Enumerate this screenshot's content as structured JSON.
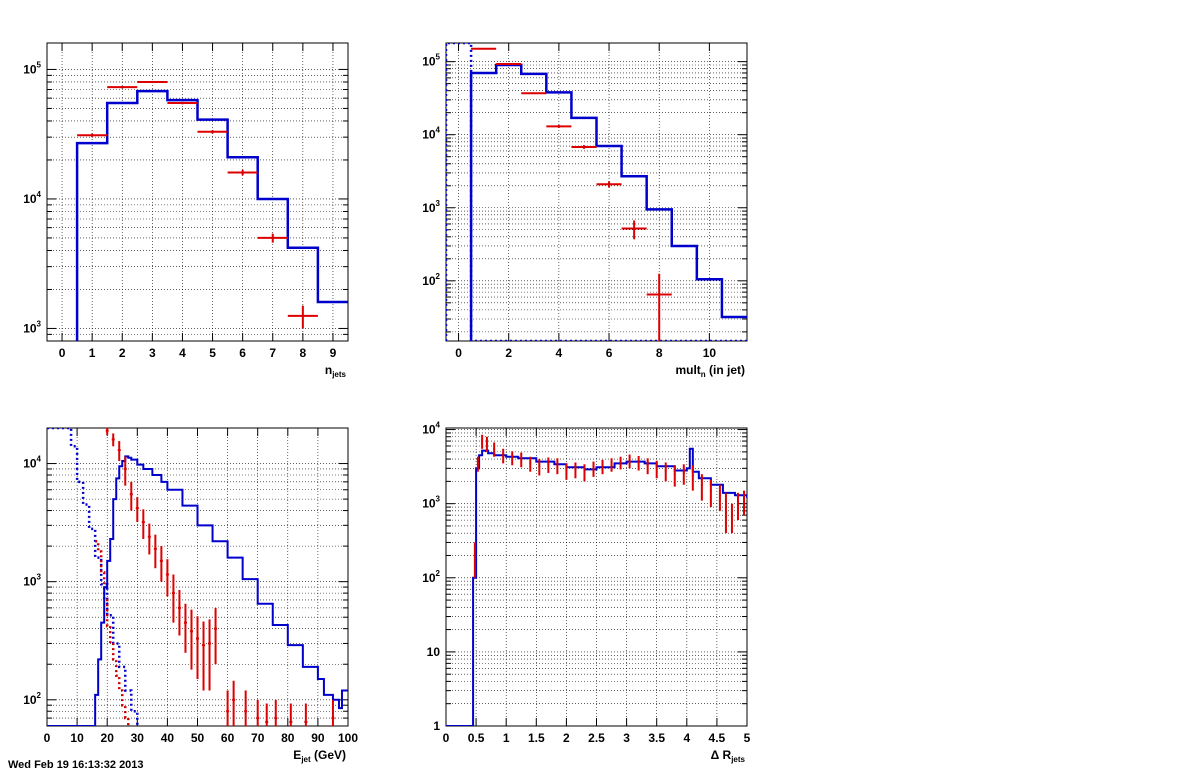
{
  "footer": "Wed Feb 19 16:13:32 2013",
  "chart_data": [
    {
      "id": "njets",
      "type": "line",
      "xlabel_main": "n",
      "xlabel_sub": "jets",
      "xlabel_rest": "",
      "xlim": [
        -0.5,
        9.5
      ],
      "ylim": [
        800,
        160000
      ],
      "log_y": true,
      "grid": true,
      "x_ticks": [
        0,
        1,
        2,
        3,
        4,
        5,
        6,
        7,
        8,
        9
      ],
      "x_tick_labels": [
        "0",
        "1",
        "2",
        "3",
        "4",
        "5",
        "6",
        "7",
        "8",
        "9"
      ],
      "y_ticks": [
        1000,
        10000,
        100000
      ],
      "y_tick_labels": [
        {
          "base": "10",
          "exp": "3"
        },
        {
          "base": "10",
          "exp": "4"
        },
        {
          "base": "10",
          "exp": "5"
        }
      ],
      "series": [
        {
          "style": "step-solid",
          "color": "#0000cc",
          "edges": [
            0.5,
            1.5,
            2.5,
            3.5,
            4.5,
            5.5,
            6.5,
            7.5,
            8.5,
            9.5
          ],
          "values": [
            27000,
            55000,
            68000,
            58000,
            41000,
            21000,
            10000,
            4200,
            1600
          ]
        },
        {
          "style": "errorbar",
          "color": "#dd0000",
          "points": [
            {
              "x": 1,
              "y": 31000,
              "xerr": 0.5,
              "yerr": 1000
            },
            {
              "x": 2,
              "y": 73000,
              "xerr": 0.5,
              "yerr": 1500
            },
            {
              "x": 3,
              "y": 80000,
              "xerr": 0.5,
              "yerr": 1500
            },
            {
              "x": 4,
              "y": 55000,
              "xerr": 0.5,
              "yerr": 1200
            },
            {
              "x": 5,
              "y": 33000,
              "xerr": 0.5,
              "yerr": 1000
            },
            {
              "x": 6,
              "y": 16000,
              "xerr": 0.5,
              "yerr": 800
            },
            {
              "x": 7,
              "y": 5000,
              "xerr": 0.5,
              "yerr": 400
            },
            {
              "x": 8,
              "y": 1250,
              "xerr": 0.5,
              "yerr": 250
            }
          ]
        }
      ]
    },
    {
      "id": "mult",
      "type": "line",
      "xlabel_main": "mult",
      "xlabel_sub": "n",
      "xlabel_rest": " (in jet)",
      "xlim": [
        -0.5,
        11.5
      ],
      "ylim": [
        15,
        180000
      ],
      "log_y": true,
      "grid": true,
      "x_ticks": [
        0,
        2,
        4,
        6,
        8,
        10
      ],
      "x_tick_labels": [
        "0",
        "2",
        "4",
        "6",
        "8",
        "10"
      ],
      "y_ticks": [
        100,
        1000,
        10000,
        100000
      ],
      "y_tick_labels": [
        {
          "base": "10",
          "exp": "2"
        },
        {
          "base": "10",
          "exp": "3"
        },
        {
          "base": "10",
          "exp": "4"
        },
        {
          "base": "10",
          "exp": "5"
        }
      ],
      "series": [
        {
          "style": "step-dotted",
          "color": "#0000cc",
          "edges": [
            -0.5,
            0.5,
            11.5
          ],
          "values": [
            180000,
            15
          ]
        },
        {
          "style": "step-solid",
          "color": "#0000cc",
          "edges": [
            0.5,
            1.5,
            2.5,
            3.5,
            4.5,
            5.5,
            6.5,
            7.5,
            8.5,
            9.5,
            10.5,
            11.5
          ],
          "values": [
            70000,
            90000,
            68000,
            38000,
            17000,
            7000,
            2700,
            950,
            300,
            105,
            32
          ]
        },
        {
          "style": "errorbar",
          "color": "#dd0000",
          "points": [
            {
              "x": 1,
              "y": 150000,
              "xerr": 0.5,
              "yerr": 2000
            },
            {
              "x": 2,
              "y": 93000,
              "xerr": 0.5,
              "yerr": 1500
            },
            {
              "x": 3,
              "y": 37000,
              "xerr": 0.5,
              "yerr": 1000
            },
            {
              "x": 4,
              "y": 13000,
              "xerr": 0.5,
              "yerr": 600
            },
            {
              "x": 5,
              "y": 6800,
              "xerr": 0.5,
              "yerr": 400
            },
            {
              "x": 6,
              "y": 2100,
              "xerr": 0.5,
              "yerr": 200
            },
            {
              "x": 7,
              "y": 520,
              "xerr": 0.5,
              "yerr": 150
            },
            {
              "x": 8,
              "y": 65,
              "xerr": 0.5,
              "yerr": 60
            }
          ]
        }
      ]
    },
    {
      "id": "ejet",
      "type": "line",
      "xlabel_main": "E",
      "xlabel_sub": "jet",
      "xlabel_rest": " (GeV)",
      "xlim": [
        0,
        100
      ],
      "ylim": [
        60,
        20000
      ],
      "log_y": true,
      "grid": true,
      "x_ticks": [
        0,
        10,
        20,
        30,
        40,
        50,
        60,
        70,
        80,
        90,
        100
      ],
      "x_tick_labels": [
        "0",
        "10",
        "20",
        "30",
        "40",
        "50",
        "60",
        "70",
        "80",
        "90",
        "100"
      ],
      "y_ticks": [
        100,
        1000,
        10000
      ],
      "y_tick_labels": [
        {
          "base": "10",
          "exp": "2"
        },
        {
          "base": "10",
          "exp": "3"
        },
        {
          "base": "10",
          "exp": "4"
        }
      ],
      "series": [
        {
          "style": "curve-dotted",
          "color": "#0000cc",
          "x": [
            0,
            6,
            8,
            10,
            12,
            14,
            16,
            18,
            20,
            22,
            24,
            26,
            28,
            30
          ],
          "y": [
            20000,
            20000,
            14000,
            7000,
            4500,
            2800,
            1600,
            950,
            520,
            300,
            190,
            120,
            80,
            60
          ]
        },
        {
          "style": "curve-dotted",
          "color": "#cc0000",
          "x": [
            16,
            17,
            18,
            19,
            20,
            21,
            22,
            23,
            24,
            25,
            26,
            27
          ],
          "y": [
            2200,
            1800,
            1200,
            700,
            420,
            300,
            220,
            160,
            120,
            90,
            70,
            60
          ]
        },
        {
          "style": "curve-solid",
          "color": "#0000cc",
          "x": [
            0,
            15,
            16,
            17,
            18,
            19,
            20,
            21,
            22,
            23,
            24,
            25,
            26,
            27,
            28,
            30,
            32,
            35,
            38,
            40,
            45,
            50,
            55,
            60,
            65,
            70,
            75,
            80,
            85,
            90,
            92,
            95,
            97,
            98,
            100
          ],
          "y": [
            60,
            60,
            110,
            220,
            450,
            900,
            1500,
            2300,
            5000,
            7500,
            9500,
            10500,
            11500,
            11200,
            10800,
            9800,
            9000,
            8000,
            7000,
            6000,
            4400,
            3000,
            2200,
            1600,
            1050,
            650,
            430,
            290,
            190,
            150,
            110,
            100,
            85,
            120,
            120
          ]
        },
        {
          "style": "errorbar",
          "color": "#dd0000",
          "points": [
            {
              "x": 20,
              "y": 19000,
              "xerr": 0.5,
              "yerr": 1500
            },
            {
              "x": 22,
              "y": 16000,
              "xerr": 0.5,
              "yerr": 2000
            },
            {
              "x": 24,
              "y": 13000,
              "xerr": 0.5,
              "yerr": 2500
            },
            {
              "x": 26,
              "y": 9000,
              "xerr": 0.5,
              "yerr": 2500
            },
            {
              "x": 28,
              "y": 5500,
              "xerr": 0.5,
              "yerr": 1500
            },
            {
              "x": 30,
              "y": 4200,
              "xerr": 0.5,
              "yerr": 1000
            },
            {
              "x": 32,
              "y": 3200,
              "xerr": 0.5,
              "yerr": 900
            },
            {
              "x": 34,
              "y": 2400,
              "xerr": 0.5,
              "yerr": 700
            },
            {
              "x": 36,
              "y": 1900,
              "xerr": 0.5,
              "yerr": 600
            },
            {
              "x": 38,
              "y": 1500,
              "xerr": 0.5,
              "yerr": 500
            },
            {
              "x": 40,
              "y": 1150,
              "xerr": 0.5,
              "yerr": 400
            },
            {
              "x": 42,
              "y": 800,
              "xerr": 0.5,
              "yerr": 350
            },
            {
              "x": 44,
              "y": 600,
              "xerr": 0.5,
              "yerr": 250
            },
            {
              "x": 46,
              "y": 450,
              "xerr": 0.5,
              "yerr": 200
            },
            {
              "x": 48,
              "y": 380,
              "xerr": 0.5,
              "yerr": 200
            },
            {
              "x": 50,
              "y": 330,
              "xerr": 0.5,
              "yerr": 180
            },
            {
              "x": 52,
              "y": 290,
              "xerr": 0.5,
              "yerr": 170
            },
            {
              "x": 54,
              "y": 300,
              "xerr": 0.5,
              "yerr": 180
            },
            {
              "x": 56,
              "y": 400,
              "xerr": 0.5,
              "yerr": 200
            },
            {
              "x": 60,
              "y": 80,
              "xerr": 0.5,
              "yerr": 40
            },
            {
              "x": 62,
              "y": 100,
              "xerr": 0.5,
              "yerr": 45
            },
            {
              "x": 66,
              "y": 80,
              "xerr": 0.5,
              "yerr": 40
            },
            {
              "x": 70,
              "y": 70,
              "xerr": 0.5,
              "yerr": 30
            },
            {
              "x": 73,
              "y": 65,
              "xerr": 0.5,
              "yerr": 28
            },
            {
              "x": 76,
              "y": 70,
              "xerr": 0.5,
              "yerr": 30
            },
            {
              "x": 81,
              "y": 65,
              "xerr": 0.5,
              "yerr": 28
            },
            {
              "x": 86,
              "y": 65,
              "xerr": 0.5,
              "yerr": 28
            },
            {
              "x": 95,
              "y": 70,
              "xerr": 0.5,
              "yerr": 30
            }
          ]
        }
      ]
    },
    {
      "id": "dr",
      "type": "line",
      "xlabel_main": "Δ R",
      "xlabel_sub": "jets",
      "xlabel_rest": "",
      "xlim": [
        0,
        5
      ],
      "ylim": [
        1,
        10500
      ],
      "log_y": true,
      "grid": true,
      "x_ticks": [
        0,
        0.5,
        1,
        1.5,
        2,
        2.5,
        3,
        3.5,
        4,
        4.5,
        5
      ],
      "x_tick_labels": [
        "0",
        "0.5",
        "1",
        "1.5",
        "2",
        "2.5",
        "3",
        "3.5",
        "4",
        "4.5",
        "5"
      ],
      "y_ticks": [
        1,
        10,
        100,
        1000,
        10000
      ],
      "y_tick_labels": [
        {
          "base": "1",
          "exp": ""
        },
        {
          "base": "10",
          "exp": ""
        },
        {
          "base": "10",
          "exp": "2"
        },
        {
          "base": "10",
          "exp": "3"
        },
        {
          "base": "10",
          "exp": "4"
        }
      ],
      "series": [
        {
          "style": "curve-solid",
          "color": "#0000cc",
          "x": [
            0,
            0.4,
            0.45,
            0.5,
            0.55,
            0.6,
            0.7,
            0.8,
            1.0,
            1.2,
            1.5,
            1.8,
            2.0,
            2.3,
            2.5,
            2.8,
            3.0,
            3.3,
            3.5,
            3.8,
            4.0,
            4.05,
            4.1,
            4.2,
            4.4,
            4.6,
            4.8,
            5.0
          ],
          "y": [
            1,
            1,
            100,
            3000,
            4500,
            5200,
            4800,
            4500,
            4300,
            4100,
            3700,
            3400,
            3100,
            2900,
            3100,
            3500,
            3700,
            3500,
            3200,
            2800,
            3000,
            5500,
            2700,
            2200,
            1800,
            1400,
            1300,
            1200
          ]
        },
        {
          "style": "errorbar",
          "color": "#dd0000",
          "points": [
            {
              "x": 0.48,
              "y": 200,
              "xerr": 0.015,
              "yerr": 100
            },
            {
              "x": 0.53,
              "y": 3500,
              "xerr": 0.015,
              "yerr": 800
            },
            {
              "x": 0.6,
              "y": 7000,
              "xerr": 0.015,
              "yerr": 1500
            },
            {
              "x": 0.68,
              "y": 6500,
              "xerr": 0.015,
              "yerr": 1500
            },
            {
              "x": 0.8,
              "y": 5500,
              "xerr": 0.015,
              "yerr": 1200
            },
            {
              "x": 0.95,
              "y": 4500,
              "xerr": 0.015,
              "yerr": 1000
            },
            {
              "x": 1.1,
              "y": 4200,
              "xerr": 0.015,
              "yerr": 900
            },
            {
              "x": 1.25,
              "y": 4000,
              "xerr": 0.015,
              "yerr": 900
            },
            {
              "x": 1.4,
              "y": 3500,
              "xerr": 0.015,
              "yerr": 800
            },
            {
              "x": 1.55,
              "y": 3200,
              "xerr": 0.015,
              "yerr": 800
            },
            {
              "x": 1.7,
              "y": 3400,
              "xerr": 0.015,
              "yerr": 800
            },
            {
              "x": 1.85,
              "y": 3300,
              "xerr": 0.015,
              "yerr": 800
            },
            {
              "x": 2.0,
              "y": 2800,
              "xerr": 0.015,
              "yerr": 700
            },
            {
              "x": 2.15,
              "y": 2900,
              "xerr": 0.015,
              "yerr": 700
            },
            {
              "x": 2.3,
              "y": 2700,
              "xerr": 0.015,
              "yerr": 700
            },
            {
              "x": 2.45,
              "y": 3000,
              "xerr": 0.015,
              "yerr": 700
            },
            {
              "x": 2.6,
              "y": 3200,
              "xerr": 0.015,
              "yerr": 700
            },
            {
              "x": 2.75,
              "y": 3400,
              "xerr": 0.015,
              "yerr": 700
            },
            {
              "x": 2.9,
              "y": 3600,
              "xerr": 0.015,
              "yerr": 700
            },
            {
              "x": 3.05,
              "y": 3800,
              "xerr": 0.015,
              "yerr": 800
            },
            {
              "x": 3.2,
              "y": 3600,
              "xerr": 0.015,
              "yerr": 800
            },
            {
              "x": 3.35,
              "y": 3300,
              "xerr": 0.015,
              "yerr": 800
            },
            {
              "x": 3.5,
              "y": 3000,
              "xerr": 0.015,
              "yerr": 800
            },
            {
              "x": 3.65,
              "y": 2800,
              "xerr": 0.015,
              "yerr": 800
            },
            {
              "x": 3.8,
              "y": 2500,
              "xerr": 0.015,
              "yerr": 800
            },
            {
              "x": 3.95,
              "y": 2600,
              "xerr": 0.015,
              "yerr": 800
            },
            {
              "x": 4.1,
              "y": 2400,
              "xerr": 0.015,
              "yerr": 900
            },
            {
              "x": 4.25,
              "y": 1800,
              "xerr": 0.015,
              "yerr": 700
            },
            {
              "x": 4.4,
              "y": 1500,
              "xerr": 0.015,
              "yerr": 600
            },
            {
              "x": 4.55,
              "y": 1300,
              "xerr": 0.015,
              "yerr": 500
            },
            {
              "x": 4.65,
              "y": 900,
              "xerr": 0.015,
              "yerr": 500
            },
            {
              "x": 4.75,
              "y": 700,
              "xerr": 0.015,
              "yerr": 300
            },
            {
              "x": 4.85,
              "y": 1000,
              "xerr": 0.015,
              "yerr": 400
            },
            {
              "x": 4.95,
              "y": 1100,
              "xerr": 0.015,
              "yerr": 400
            }
          ]
        }
      ]
    }
  ]
}
